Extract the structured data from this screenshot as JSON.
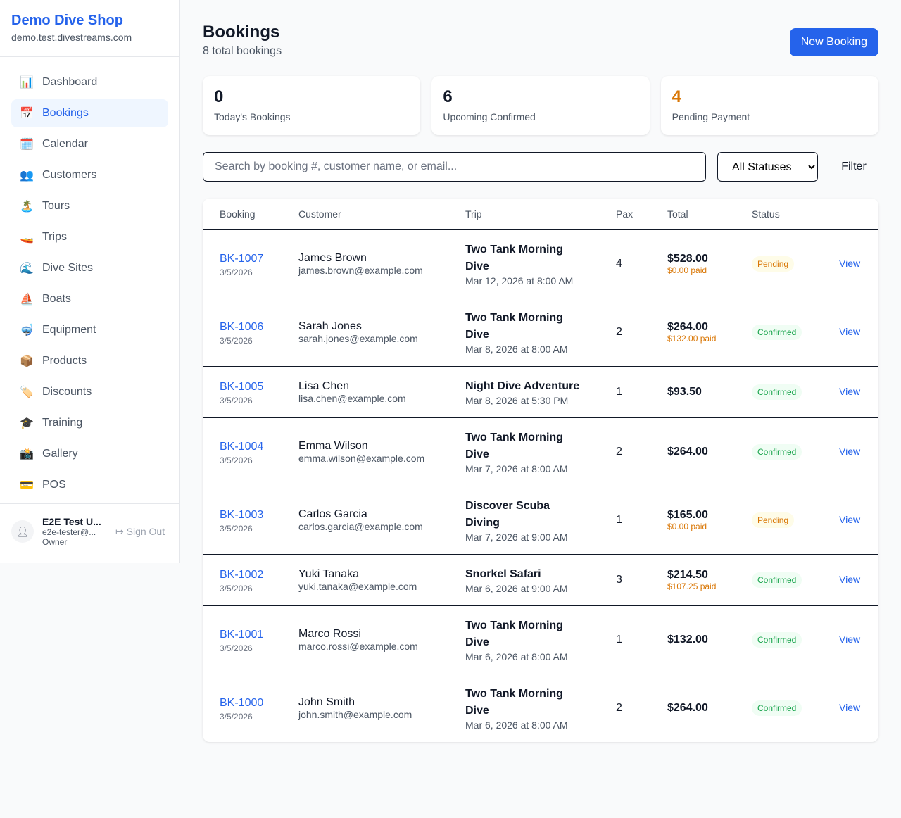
{
  "sidebar": {
    "shop_name": "Demo Dive Shop",
    "domain": "demo.test.divestreams.com",
    "items": [
      {
        "label": "Dashboard",
        "icon": "📊",
        "name": "bar-chart-icon"
      },
      {
        "label": "Bookings",
        "icon": "📅",
        "name": "calendar-icon",
        "active": true
      },
      {
        "label": "Calendar",
        "icon": "🗓️",
        "name": "spiral-calendar-icon"
      },
      {
        "label": "Customers",
        "icon": "👥",
        "name": "users-icon"
      },
      {
        "label": "Tours",
        "icon": "🏝️",
        "name": "island-icon"
      },
      {
        "label": "Trips",
        "icon": "🚤",
        "name": "boat-icon"
      },
      {
        "label": "Dive Sites",
        "icon": "🌊",
        "name": "wave-icon"
      },
      {
        "label": "Boats",
        "icon": "⛵",
        "name": "sailboat-icon"
      },
      {
        "label": "Equipment",
        "icon": "🤿",
        "name": "diving-mask-icon"
      },
      {
        "label": "Products",
        "icon": "📦",
        "name": "package-icon"
      },
      {
        "label": "Discounts",
        "icon": "🏷️",
        "name": "tag-icon"
      },
      {
        "label": "Training",
        "icon": "🎓",
        "name": "graduation-cap-icon"
      },
      {
        "label": "Gallery",
        "icon": "📸",
        "name": "camera-icon"
      },
      {
        "label": "POS",
        "icon": "💳",
        "name": "credit-card-icon"
      }
    ],
    "user": {
      "name": "E2E Test U...",
      "email": "e2e-tester@...",
      "role": "Owner",
      "sign_out": "Sign Out"
    }
  },
  "header": {
    "title": "Bookings",
    "subtitle": "8 total bookings",
    "new_booking": "New Booking"
  },
  "stats": [
    {
      "value": "0",
      "label": "Today's Bookings",
      "color": "#111827"
    },
    {
      "value": "6",
      "label": "Upcoming Confirmed",
      "color": "#111827"
    },
    {
      "value": "4",
      "label": "Pending Payment",
      "color": "#d97706"
    }
  ],
  "filters": {
    "search_placeholder": "Search by booking #, customer name, or email...",
    "status": "All Statuses",
    "filter": "Filter"
  },
  "table": {
    "columns": [
      "Booking",
      "Customer",
      "Trip",
      "Pax",
      "Total",
      "Status",
      ""
    ],
    "rows": [
      {
        "id": "BK-1007",
        "date": "3/5/2026",
        "customer": "James Brown",
        "email": "james.brown@example.com",
        "trip": "Two Tank Morning Dive",
        "trip_date": "Mar 12, 2026 at 8:00 AM",
        "pax": "4",
        "total": "$528.00",
        "paid": "$0.00 paid",
        "status": "Pending",
        "action": "View"
      },
      {
        "id": "BK-1006",
        "date": "3/5/2026",
        "customer": "Sarah Jones",
        "email": "sarah.jones@example.com",
        "trip": "Two Tank Morning Dive",
        "trip_date": "Mar 8, 2026 at 8:00 AM",
        "pax": "2",
        "total": "$264.00",
        "paid": "$132.00 paid",
        "status": "Confirmed",
        "action": "View"
      },
      {
        "id": "BK-1005",
        "date": "3/5/2026",
        "customer": "Lisa Chen",
        "email": "lisa.chen@example.com",
        "trip": "Night Dive Adventure",
        "trip_date": "Mar 8, 2026 at 5:30 PM",
        "pax": "1",
        "total": "$93.50",
        "paid": "",
        "status": "Confirmed",
        "action": "View"
      },
      {
        "id": "BK-1004",
        "date": "3/5/2026",
        "customer": "Emma Wilson",
        "email": "emma.wilson@example.com",
        "trip": "Two Tank Morning Dive",
        "trip_date": "Mar 7, 2026 at 8:00 AM",
        "pax": "2",
        "total": "$264.00",
        "paid": "",
        "status": "Confirmed",
        "action": "View"
      },
      {
        "id": "BK-1003",
        "date": "3/5/2026",
        "customer": "Carlos Garcia",
        "email": "carlos.garcia@example.com",
        "trip": "Discover Scuba Diving",
        "trip_date": "Mar 7, 2026 at 9:00 AM",
        "pax": "1",
        "total": "$165.00",
        "paid": "$0.00 paid",
        "status": "Pending",
        "action": "View"
      },
      {
        "id": "BK-1002",
        "date": "3/5/2026",
        "customer": "Yuki Tanaka",
        "email": "yuki.tanaka@example.com",
        "trip": "Snorkel Safari",
        "trip_date": "Mar 6, 2026 at 9:00 AM",
        "pax": "3",
        "total": "$214.50",
        "paid": "$107.25 paid",
        "status": "Confirmed",
        "action": "View"
      },
      {
        "id": "BK-1001",
        "date": "3/5/2026",
        "customer": "Marco Rossi",
        "email": "marco.rossi@example.com",
        "trip": "Two Tank Morning Dive",
        "trip_date": "Mar 6, 2026 at 8:00 AM",
        "pax": "1",
        "total": "$132.00",
        "paid": "",
        "status": "Confirmed",
        "action": "View"
      },
      {
        "id": "BK-1000",
        "date": "3/5/2026",
        "customer": "John Smith",
        "email": "john.smith@example.com",
        "trip": "Two Tank Morning Dive",
        "trip_date": "Mar 6, 2026 at 8:00 AM",
        "pax": "2",
        "total": "$264.00",
        "paid": "",
        "status": "Confirmed",
        "action": "View"
      }
    ]
  }
}
